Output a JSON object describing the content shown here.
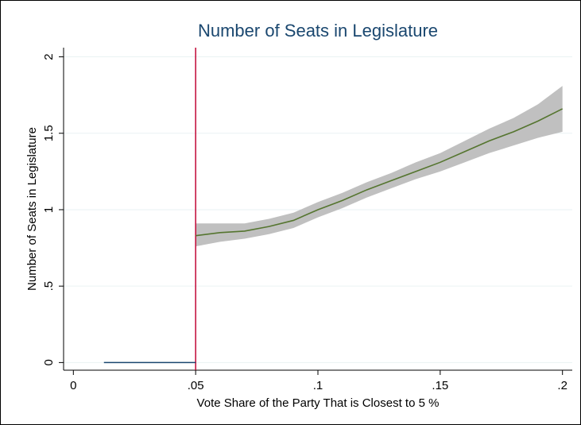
{
  "chart_data": {
    "type": "line",
    "title": "Number of Seats in Legislature",
    "xlabel": "Vote Share of the Party That is Closest to 5 %",
    "ylabel": "Number of Seats in Legislature",
    "xlim": [
      -0.004,
      0.204
    ],
    "ylim": [
      -0.05,
      2.06
    ],
    "xticks": [
      0,
      {
        "value": 0.05,
        "label": ".05"
      },
      {
        "value": 0.1,
        "label": ".1"
      },
      {
        "value": 0.15,
        "label": ".15"
      },
      {
        "value": 0.2,
        "label": ".2"
      }
    ],
    "yticks": [
      0,
      {
        "value": 0.5,
        "label": ".5"
      },
      1,
      1.5,
      2
    ],
    "grid": true,
    "vline": 0.05,
    "vline_color": "#c10534",
    "band": {
      "color": "#c0c0c0",
      "x": [
        0.05,
        0.06,
        0.07,
        0.08,
        0.09,
        0.1,
        0.11,
        0.12,
        0.13,
        0.14,
        0.15,
        0.16,
        0.17,
        0.18,
        0.19,
        0.2
      ],
      "lower": [
        0.76,
        0.79,
        0.81,
        0.84,
        0.88,
        0.95,
        1.01,
        1.08,
        1.14,
        1.2,
        1.25,
        1.31,
        1.37,
        1.42,
        1.47,
        1.51
      ],
      "upper": [
        0.91,
        0.91,
        0.91,
        0.94,
        0.98,
        1.05,
        1.11,
        1.18,
        1.24,
        1.31,
        1.37,
        1.45,
        1.53,
        1.6,
        1.69,
        1.81
      ]
    },
    "series": [
      {
        "color": "#1a476f",
        "x": [
          0.0125,
          0.05
        ],
        "values": [
          0,
          0
        ]
      },
      {
        "color": "#55752f",
        "x": [
          0.05,
          0.06,
          0.07,
          0.08,
          0.09,
          0.1,
          0.11,
          0.12,
          0.13,
          0.14,
          0.15,
          0.16,
          0.17,
          0.18,
          0.19,
          0.2
        ],
        "values": [
          0.83,
          0.85,
          0.86,
          0.89,
          0.93,
          1.0,
          1.06,
          1.13,
          1.19,
          1.25,
          1.31,
          1.38,
          1.45,
          1.51,
          1.58,
          1.66
        ]
      }
    ]
  }
}
